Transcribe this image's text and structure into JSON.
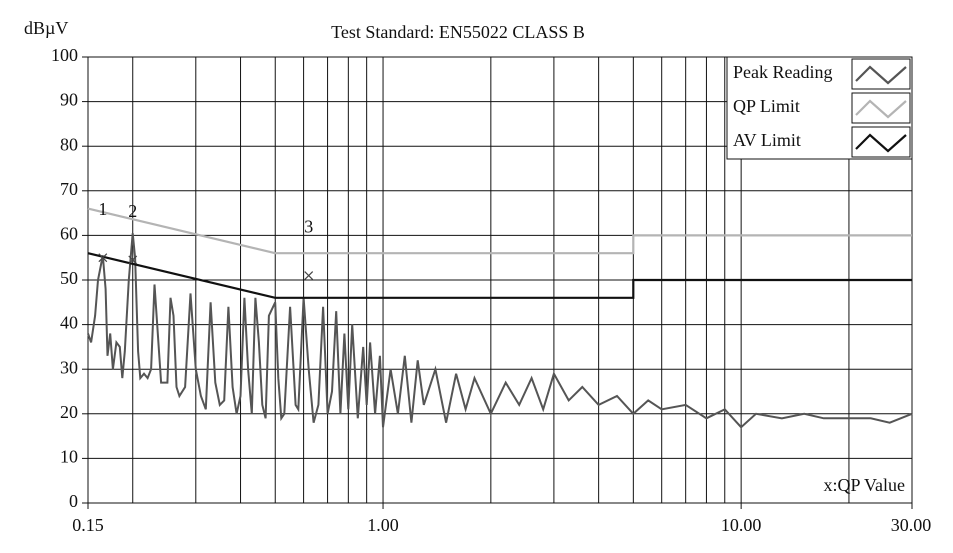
{
  "chart_data": {
    "type": "line",
    "title": "Test Standard: EN55022 CLASS B",
    "y_label": "dBµV",
    "annotation": "x:QP Value",
    "xscale": "log",
    "xlim": [
      0.15,
      30
    ],
    "ylim": [
      0,
      100
    ],
    "xticks": [
      {
        "value": 0.15,
        "label": "0.15"
      },
      {
        "value": 1,
        "label": "1.00"
      },
      {
        "value": 10,
        "label": "10.00"
      },
      {
        "value": 30,
        "label": "30.00"
      }
    ],
    "xgrid": [
      0.2,
      0.3,
      0.4,
      0.5,
      0.6,
      0.7,
      0.8,
      0.9,
      1,
      2,
      3,
      4,
      5,
      6,
      7,
      8,
      9,
      10,
      20
    ],
    "yticks": [
      0,
      10,
      20,
      30,
      40,
      50,
      60,
      70,
      80,
      90,
      100
    ],
    "grid": true,
    "legend": "top-right",
    "series": [
      {
        "name": "Peak Reading",
        "color": "#555555",
        "x": [
          0.15,
          0.153,
          0.157,
          0.16,
          0.165,
          0.168,
          0.17,
          0.173,
          0.176,
          0.18,
          0.184,
          0.187,
          0.19,
          0.195,
          0.2,
          0.203,
          0.207,
          0.21,
          0.215,
          0.22,
          0.225,
          0.23,
          0.235,
          0.24,
          0.25,
          0.255,
          0.26,
          0.265,
          0.27,
          0.28,
          0.29,
          0.3,
          0.31,
          0.32,
          0.33,
          0.34,
          0.35,
          0.36,
          0.37,
          0.38,
          0.39,
          0.4,
          0.41,
          0.42,
          0.43,
          0.44,
          0.45,
          0.46,
          0.47,
          0.48,
          0.5,
          0.51,
          0.52,
          0.53,
          0.55,
          0.57,
          0.58,
          0.6,
          0.62,
          0.64,
          0.66,
          0.68,
          0.7,
          0.72,
          0.74,
          0.76,
          0.78,
          0.8,
          0.82,
          0.85,
          0.88,
          0.9,
          0.92,
          0.95,
          0.98,
          1.0,
          1.05,
          1.1,
          1.15,
          1.2,
          1.25,
          1.3,
          1.4,
          1.5,
          1.6,
          1.7,
          1.8,
          2.0,
          2.2,
          2.4,
          2.6,
          2.8,
          3.0,
          3.3,
          3.6,
          4.0,
          4.5,
          5.0,
          5.5,
          6.0,
          7,
          8,
          9,
          10,
          11,
          13,
          15,
          17,
          20,
          23,
          26,
          30
        ],
        "values": [
          38,
          36,
          42,
          50,
          55.5,
          48,
          33,
          38,
          30,
          36,
          35,
          28,
          34,
          50,
          60.5,
          55,
          34,
          28,
          29,
          28,
          30,
          49,
          38,
          27,
          27,
          46,
          42,
          26,
          24,
          26,
          47,
          30,
          24,
          21,
          45,
          27,
          22,
          23,
          44,
          26,
          20,
          24,
          46,
          30,
          20,
          46,
          36,
          22,
          19,
          42,
          45,
          28,
          19,
          20,
          44,
          22,
          21,
          46,
          30,
          18,
          22,
          44,
          20,
          25,
          43,
          20,
          38,
          21,
          40,
          19,
          35,
          22,
          36,
          20,
          33,
          17,
          30,
          20,
          33,
          18,
          32,
          22,
          30,
          18,
          29,
          21,
          28,
          20,
          27,
          22,
          28,
          21,
          29,
          23,
          26,
          22,
          24,
          20,
          23,
          21,
          22,
          19,
          21,
          17,
          20,
          19,
          20,
          19,
          19,
          19,
          18,
          20
        ]
      },
      {
        "name": "QP Limit",
        "color": "#b4b4b4",
        "x": [
          0.15,
          0.5,
          5,
          5,
          30
        ],
        "values": [
          66,
          56,
          56,
          60,
          60
        ]
      },
      {
        "name": "AV Limit",
        "color": "#111111",
        "x": [
          0.15,
          0.5,
          5,
          5,
          30
        ],
        "values": [
          56,
          46,
          46,
          50,
          50
        ]
      }
    ],
    "markers": [
      {
        "label": "1",
        "x": 0.165,
        "y": 55
      },
      {
        "label": "2",
        "x": 0.2,
        "y": 54.5
      },
      {
        "label": "3",
        "x": 0.62,
        "y": 51
      }
    ]
  }
}
